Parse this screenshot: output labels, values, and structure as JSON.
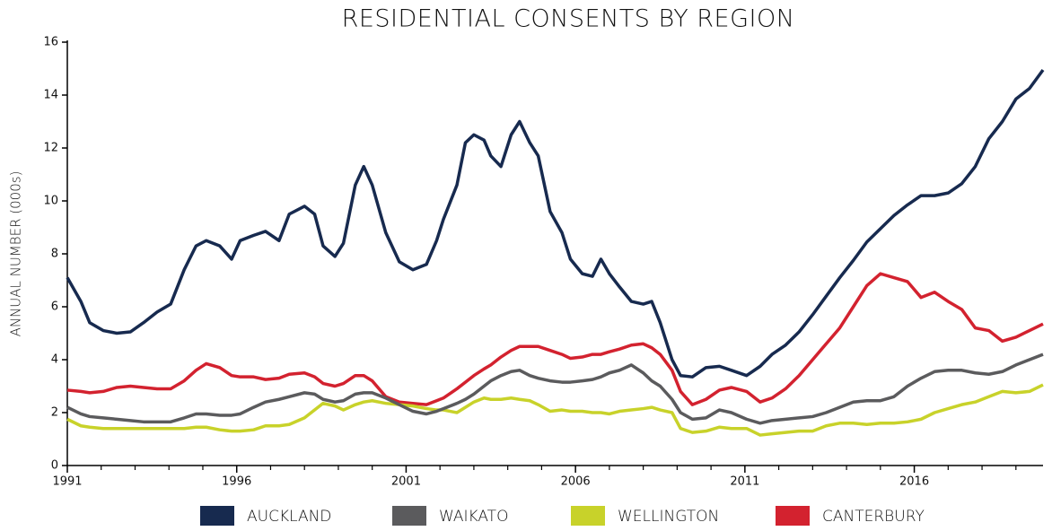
{
  "chart_data": {
    "type": "line",
    "title": "RESIDENTIAL CONSENTS BY REGION",
    "y_label": "ANNUAL NUMBER (000s)",
    "x": [
      1991.0,
      1991.4,
      1991.66,
      1992.06,
      1992.46,
      1992.86,
      1993.25,
      1993.65,
      1994.05,
      1994.45,
      1994.8,
      1995.1,
      1995.5,
      1995.85,
      1996.1,
      1996.5,
      1996.85,
      1997.25,
      1997.55,
      1998.0,
      1998.3,
      1998.55,
      1998.9,
      1999.15,
      1999.5,
      1999.75,
      2000.0,
      2000.4,
      2000.8,
      2001.2,
      2001.6,
      2001.9,
      2002.1,
      2002.5,
      2002.75,
      2003.0,
      2003.3,
      2003.5,
      2003.8,
      2004.1,
      2004.35,
      2004.65,
      2004.9,
      2005.25,
      2005.6,
      2005.85,
      2006.2,
      2006.5,
      2006.75,
      2007.0,
      2007.3,
      2007.65,
      2008.0,
      2008.25,
      2008.5,
      2008.85,
      2009.1,
      2009.45,
      2009.85,
      2010.25,
      2010.6,
      2011.05,
      2011.45,
      2011.8,
      2012.2,
      2012.6,
      2013.0,
      2013.4,
      2013.8,
      2014.2,
      2014.6,
      2015.0,
      2015.4,
      2015.8,
      2016.2,
      2016.6,
      2017.0,
      2017.4,
      2017.8,
      2018.2,
      2018.6,
      2019.0,
      2019.4,
      2019.8
    ],
    "series": [
      {
        "name": "AUCKLAND",
        "color": "#172a4f",
        "values": [
          7.1,
          6.2,
          5.4,
          5.1,
          5.0,
          5.05,
          5.4,
          5.8,
          6.1,
          7.4,
          8.3,
          8.5,
          8.3,
          7.8,
          8.5,
          8.7,
          8.85,
          8.5,
          9.5,
          9.8,
          9.5,
          8.3,
          7.9,
          8.4,
          10.6,
          11.3,
          10.6,
          8.8,
          7.7,
          7.4,
          7.6,
          8.5,
          9.3,
          10.6,
          12.2,
          12.5,
          12.3,
          11.7,
          11.3,
          12.5,
          13.0,
          12.2,
          11.7,
          9.6,
          8.8,
          7.8,
          7.25,
          7.15,
          7.8,
          7.25,
          6.75,
          6.2,
          6.1,
          6.2,
          5.4,
          4.0,
          3.4,
          3.35,
          3.7,
          3.75,
          3.6,
          3.4,
          3.75,
          4.2,
          4.55,
          5.05,
          5.7,
          6.4,
          7.1,
          7.75,
          8.45,
          8.95,
          9.45,
          9.85,
          10.2,
          10.2,
          10.3,
          10.65,
          11.3,
          12.35,
          13.0,
          13.85,
          14.25,
          14.95
        ]
      },
      {
        "name": "WAIKATO",
        "color": "#5b5b5d",
        "values": [
          2.2,
          1.95,
          1.85,
          1.8,
          1.75,
          1.7,
          1.65,
          1.65,
          1.65,
          1.8,
          1.95,
          1.95,
          1.9,
          1.9,
          1.95,
          2.2,
          2.4,
          2.5,
          2.6,
          2.75,
          2.7,
          2.5,
          2.4,
          2.45,
          2.7,
          2.75,
          2.75,
          2.55,
          2.3,
          2.05,
          1.95,
          2.05,
          2.15,
          2.35,
          2.5,
          2.7,
          3.0,
          3.2,
          3.4,
          3.55,
          3.6,
          3.4,
          3.3,
          3.2,
          3.15,
          3.15,
          3.2,
          3.25,
          3.35,
          3.5,
          3.6,
          3.8,
          3.5,
          3.2,
          3.0,
          2.5,
          2.0,
          1.75,
          1.8,
          2.1,
          2.0,
          1.75,
          1.6,
          1.7,
          1.75,
          1.8,
          1.85,
          2.0,
          2.2,
          2.4,
          2.45,
          2.45,
          2.6,
          3.0,
          3.3,
          3.55,
          3.6,
          3.6,
          3.5,
          3.45,
          3.55,
          3.8,
          4.0,
          4.2
        ]
      },
      {
        "name": "WELLINGTON",
        "color": "#c8d22a",
        "values": [
          1.75,
          1.5,
          1.45,
          1.4,
          1.4,
          1.4,
          1.4,
          1.4,
          1.4,
          1.4,
          1.45,
          1.45,
          1.35,
          1.3,
          1.3,
          1.35,
          1.5,
          1.5,
          1.55,
          1.8,
          2.1,
          2.35,
          2.25,
          2.1,
          2.3,
          2.4,
          2.45,
          2.35,
          2.3,
          2.25,
          2.15,
          2.1,
          2.1,
          2.0,
          2.2,
          2.4,
          2.55,
          2.5,
          2.5,
          2.55,
          2.5,
          2.45,
          2.3,
          2.05,
          2.1,
          2.05,
          2.05,
          2.0,
          2.0,
          1.95,
          2.05,
          2.1,
          2.15,
          2.2,
          2.1,
          2.0,
          1.4,
          1.25,
          1.3,
          1.45,
          1.4,
          1.4,
          1.15,
          1.2,
          1.25,
          1.3,
          1.3,
          1.5,
          1.6,
          1.6,
          1.55,
          1.6,
          1.6,
          1.65,
          1.75,
          2.0,
          2.15,
          2.3,
          2.4,
          2.6,
          2.8,
          2.75,
          2.8,
          3.05
        ]
      },
      {
        "name": "CANTERBURY",
        "color": "#d3222f",
        "values": [
          2.85,
          2.8,
          2.75,
          2.8,
          2.95,
          3.0,
          2.95,
          2.9,
          2.9,
          3.2,
          3.6,
          3.85,
          3.7,
          3.4,
          3.35,
          3.35,
          3.25,
          3.3,
          3.45,
          3.5,
          3.35,
          3.1,
          3.0,
          3.1,
          3.4,
          3.4,
          3.2,
          2.6,
          2.4,
          2.35,
          2.3,
          2.45,
          2.55,
          2.9,
          3.15,
          3.4,
          3.65,
          3.8,
          4.1,
          4.35,
          4.5,
          4.5,
          4.5,
          4.35,
          4.2,
          4.05,
          4.1,
          4.2,
          4.2,
          4.3,
          4.4,
          4.55,
          4.6,
          4.45,
          4.2,
          3.6,
          2.8,
          2.3,
          2.5,
          2.85,
          2.95,
          2.8,
          2.4,
          2.55,
          2.9,
          3.4,
          4.0,
          4.6,
          5.2,
          6.0,
          6.8,
          7.25,
          7.1,
          6.95,
          6.35,
          6.55,
          6.2,
          5.9,
          5.2,
          5.1,
          4.7,
          4.85,
          5.1,
          5.35
        ]
      }
    ],
    "xlim": [
      1991,
      2019.8
    ],
    "xticks": [
      1991,
      1996,
      2001,
      2006,
      2011,
      2016
    ],
    "xminorticks": [
      1992,
      1993,
      1994,
      1995,
      1997,
      1998,
      1999,
      2000,
      2002,
      2003,
      2004,
      2005,
      2007,
      2008,
      2009,
      2010,
      2012,
      2013,
      2014,
      2015,
      2017,
      2018,
      2019
    ],
    "ylim": [
      0,
      16
    ],
    "yticks": [
      0,
      2,
      4,
      6,
      8,
      10,
      12,
      14,
      16
    ],
    "grid": false,
    "legend": "bottom"
  }
}
